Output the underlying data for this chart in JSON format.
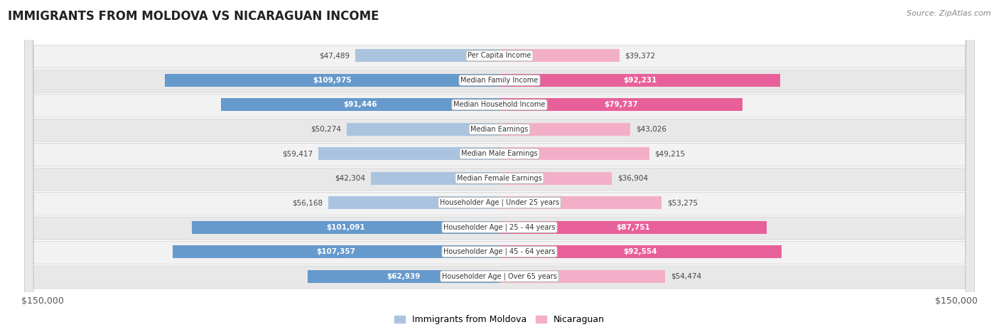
{
  "title": "IMMIGRANTS FROM MOLDOVA VS NICARAGUAN INCOME",
  "source": "Source: ZipAtlas.com",
  "categories": [
    "Per Capita Income",
    "Median Family Income",
    "Median Household Income",
    "Median Earnings",
    "Median Male Earnings",
    "Median Female Earnings",
    "Householder Age | Under 25 years",
    "Householder Age | 25 - 44 years",
    "Householder Age | 45 - 64 years",
    "Householder Age | Over 65 years"
  ],
  "moldova_values": [
    47489,
    109975,
    91446,
    50274,
    59417,
    42304,
    56168,
    101091,
    107357,
    62939
  ],
  "nicaraguan_values": [
    39372,
    92231,
    79737,
    43026,
    49215,
    36904,
    53275,
    87751,
    92554,
    54474
  ],
  "moldova_labels": [
    "$47,489",
    "$109,975",
    "$91,446",
    "$50,274",
    "$59,417",
    "$42,304",
    "$56,168",
    "$101,091",
    "$107,357",
    "$62,939"
  ],
  "nicaraguan_labels": [
    "$39,372",
    "$92,231",
    "$79,737",
    "$43,026",
    "$49,215",
    "$36,904",
    "$53,275",
    "$87,751",
    "$92,554",
    "$54,474"
  ],
  "moldova_color_light": "#aac4e0",
  "moldova_color_dark": "#6699cc",
  "nicaraguan_color_light": "#f4afc8",
  "nicaraguan_color_dark": "#e8609a",
  "max_value": 150000,
  "background_color": "#ffffff",
  "row_bg_odd": "#f2f2f2",
  "row_bg_even": "#e8e8e8",
  "legend_moldova": "Immigrants from Moldova",
  "legend_nicaraguan": "Nicaraguan",
  "inside_label_threshold": 0.4
}
